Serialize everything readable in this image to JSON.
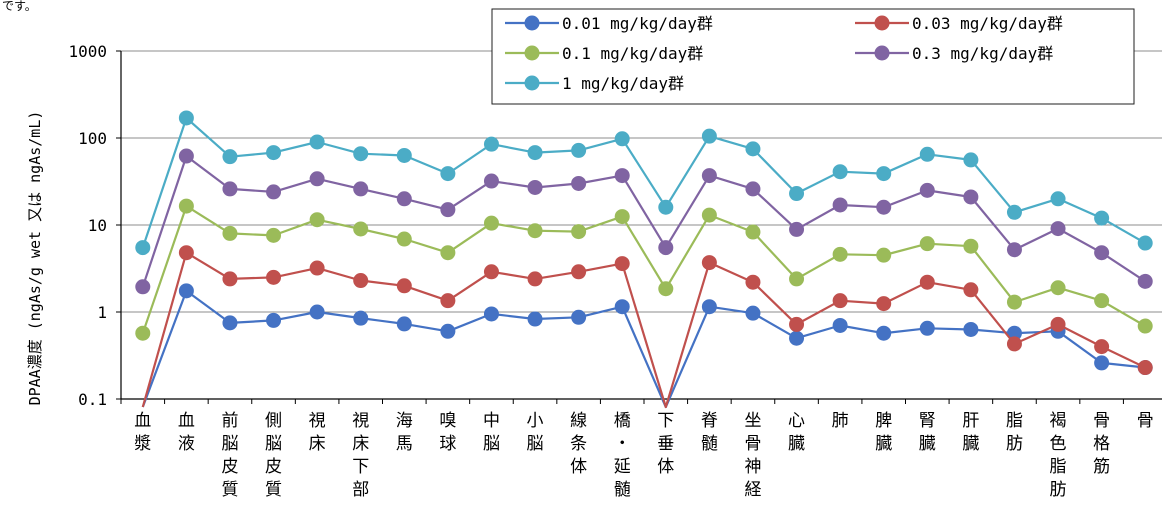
{
  "chart_data": {
    "type": "line",
    "title": "",
    "xlabel": "",
    "ylabel": "DPAA濃度 (ngAs/g wet 又は ngAs/mL)",
    "yscale": "log",
    "ylim": [
      0.1,
      1000
    ],
    "ytick_labels": [
      "0.1",
      "1",
      "10",
      "100",
      "1000"
    ],
    "grid": "horizontal",
    "legend_position": "top-right",
    "categories": [
      "血漿",
      "血液",
      "前脳皮質",
      "側脳皮質",
      "視床",
      "視床下部",
      "海馬",
      "嗅球",
      "中脳",
      "小脳",
      "線条体",
      "橋・延髄",
      "下垂体",
      "脊髄",
      "坐骨神経",
      "心臓",
      "肺",
      "脾臓",
      "腎臓",
      "肝臓",
      "脂肪",
      "褐色脂肪",
      "骨格筋",
      "骨"
    ],
    "series": [
      {
        "name": "0.01 mg/kg/day群",
        "color": "#4472C4",
        "values": [
          null,
          1.75,
          0.75,
          0.8,
          1.0,
          0.85,
          0.73,
          0.6,
          0.95,
          0.83,
          0.87,
          1.15,
          null,
          1.15,
          0.97,
          0.5,
          0.7,
          0.57,
          0.65,
          0.63,
          0.57,
          0.6,
          0.26,
          0.23
        ],
        "dips_below_axis": [
          0,
          12
        ]
      },
      {
        "name": "0.03 mg/kg/day群",
        "color": "#C0504D",
        "values": [
          null,
          4.8,
          2.4,
          2.5,
          3.2,
          2.3,
          2.0,
          1.35,
          2.9,
          2.4,
          2.9,
          3.6,
          null,
          3.7,
          2.2,
          0.72,
          1.35,
          1.25,
          2.2,
          1.8,
          0.43,
          0.72,
          0.4,
          0.23
        ],
        "dips_below_axis": [
          0,
          12
        ]
      },
      {
        "name": "0.1 mg/kg/day群",
        "color": "#9BBB59",
        "values": [
          0.57,
          16.5,
          8.0,
          7.6,
          11.5,
          9.0,
          6.9,
          4.8,
          10.5,
          8.6,
          8.4,
          12.5,
          1.85,
          13.0,
          8.3,
          2.4,
          4.6,
          4.5,
          6.1,
          5.7,
          1.3,
          1.9,
          1.35,
          0.69
        ]
      },
      {
        "name": "0.3 mg/kg/day群",
        "color": "#8064A2",
        "values": [
          1.95,
          62,
          26,
          24,
          34,
          26,
          20,
          15,
          32,
          27,
          30,
          37,
          5.5,
          37,
          26,
          8.9,
          17,
          16,
          25,
          21,
          5.2,
          9.1,
          4.8,
          2.25
        ]
      },
      {
        "name": "1 mg/kg/day群",
        "color": "#4BACC6",
        "values": [
          5.5,
          170,
          61,
          68,
          90,
          66,
          63,
          39,
          85,
          68,
          72,
          98,
          16,
          105,
          75,
          23,
          41,
          39,
          65,
          56,
          14,
          20,
          12,
          6.2
        ]
      }
    ]
  },
  "page": {
    "top_note": "です。"
  }
}
